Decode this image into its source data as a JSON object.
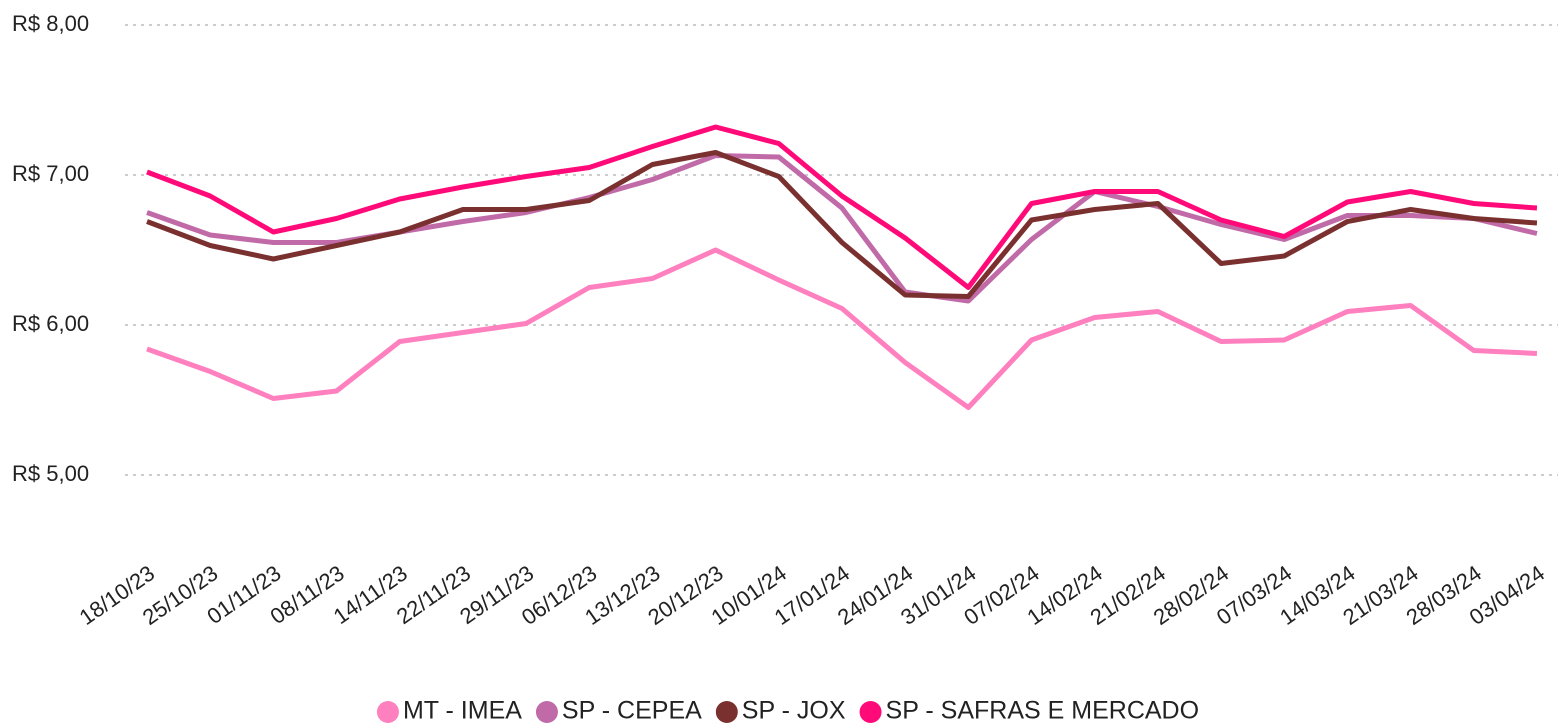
{
  "chart_data": {
    "type": "line",
    "categories": [
      "18/10/23",
      "25/10/23",
      "01/11/23",
      "08/11/23",
      "14/11/23",
      "22/11/23",
      "29/11/23",
      "06/12/23",
      "13/12/23",
      "20/12/23",
      "10/01/24",
      "17/01/24",
      "24/01/24",
      "31/01/24",
      "07/02/24",
      "14/02/24",
      "21/02/24",
      "28/02/24",
      "07/03/24",
      "14/03/24",
      "21/03/24",
      "28/03/24",
      "03/04/24"
    ],
    "series": [
      {
        "name": "MT - IMEA",
        "color": "#ff80bf",
        "values": [
          5.84,
          5.69,
          5.51,
          5.56,
          5.89,
          5.95,
          6.01,
          6.25,
          6.31,
          6.5,
          6.3,
          6.11,
          5.75,
          5.45,
          5.9,
          6.05,
          6.09,
          5.89,
          5.9,
          6.09,
          6.13,
          5.83,
          5.81
        ]
      },
      {
        "name": "SP - CEPEA",
        "color": "#c06aa8",
        "values": [
          6.75,
          6.6,
          6.55,
          6.55,
          6.62,
          6.69,
          6.75,
          6.85,
          6.97,
          7.13,
          7.12,
          6.78,
          6.22,
          6.16,
          6.57,
          6.89,
          6.79,
          6.67,
          6.57,
          6.73,
          6.73,
          6.71,
          6.61
        ]
      },
      {
        "name": "SP - JOX",
        "color": "#7b3030",
        "values": [
          6.69,
          6.53,
          6.44,
          6.53,
          6.62,
          6.77,
          6.77,
          6.83,
          7.07,
          7.15,
          6.99,
          6.55,
          6.2,
          6.19,
          6.7,
          6.77,
          6.81,
          6.41,
          6.46,
          6.69,
          6.77,
          6.71,
          6.68
        ]
      },
      {
        "name": "SP - SAFRAS E MERCADO",
        "color": "#ff0a78",
        "values": [
          7.02,
          6.86,
          6.62,
          6.71,
          6.84,
          6.92,
          6.99,
          7.05,
          7.19,
          7.32,
          7.21,
          6.86,
          6.58,
          6.25,
          6.81,
          6.89,
          6.89,
          6.7,
          6.59,
          6.82,
          6.89,
          6.81,
          6.78
        ]
      }
    ],
    "ylim": [
      4.5,
      8
    ],
    "yticks": [
      {
        "value": 5,
        "label": "R$ 5,00"
      },
      {
        "value": 6,
        "label": "R$ 6,00"
      },
      {
        "value": 7,
        "label": "R$ 7,00"
      },
      {
        "value": 8,
        "label": "R$ 8,00"
      }
    ],
    "grid": true,
    "legend": "bottom"
  }
}
